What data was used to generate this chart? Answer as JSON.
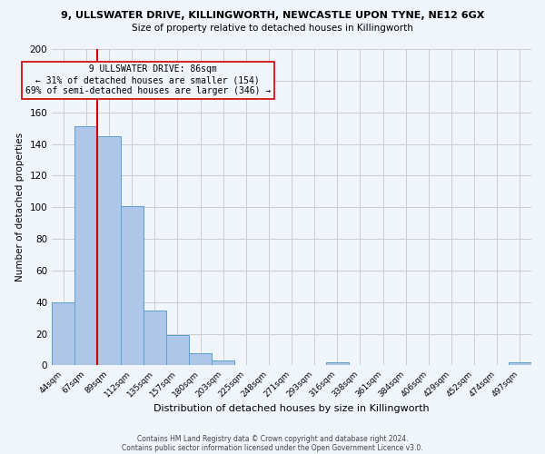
{
  "title_line1": "9, ULLSWATER DRIVE, KILLINGWORTH, NEWCASTLE UPON TYNE, NE12 6GX",
  "title_line2": "Size of property relative to detached houses in Killingworth",
  "xlabel": "Distribution of detached houses by size in Killingworth",
  "ylabel": "Number of detached properties",
  "bar_labels": [
    "44sqm",
    "67sqm",
    "89sqm",
    "112sqm",
    "135sqm",
    "157sqm",
    "180sqm",
    "203sqm",
    "225sqm",
    "248sqm",
    "271sqm",
    "293sqm",
    "316sqm",
    "338sqm",
    "361sqm",
    "384sqm",
    "406sqm",
    "429sqm",
    "452sqm",
    "474sqm",
    "497sqm"
  ],
  "bar_values": [
    40,
    151,
    145,
    101,
    35,
    19,
    8,
    3,
    0,
    0,
    0,
    0,
    2,
    0,
    0,
    0,
    0,
    0,
    0,
    0,
    2
  ],
  "bar_color": "#aec6e8",
  "bar_edgecolor": "#5a9fd4",
  "ylim": [
    0,
    200
  ],
  "yticks": [
    0,
    20,
    40,
    60,
    80,
    100,
    120,
    140,
    160,
    180,
    200
  ],
  "annotation_title": "9 ULLSWATER DRIVE: 86sqm",
  "annotation_line1": "← 31% of detached houses are smaller (154)",
  "annotation_line2": "69% of semi-detached houses are larger (346) →",
  "redline_color": "#cc0000",
  "annotation_box_edgecolor": "#cc0000",
  "grid_color": "#cccccc",
  "bg_color": "#f0f4fb",
  "footnote1": "Contains HM Land Registry data © Crown copyright and database right 2024.",
  "footnote2": "Contains public sector information licensed under the Open Government Licence v3.0."
}
